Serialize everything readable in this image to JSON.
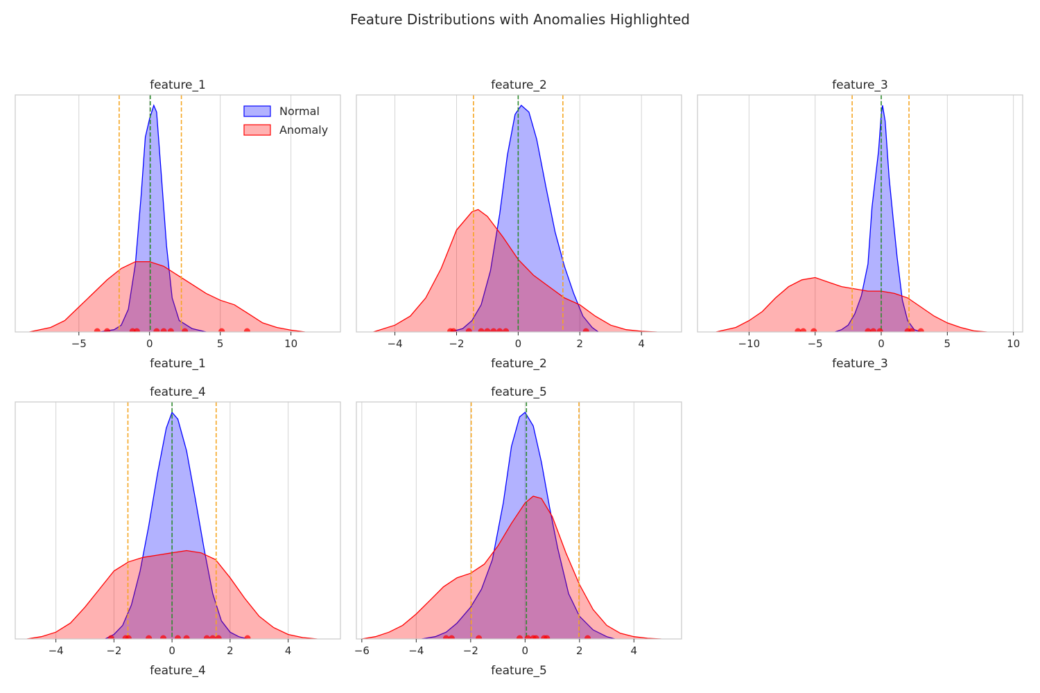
{
  "figure_title": "Feature Distributions with Anomalies Highlighted",
  "colors": {
    "normal_line": "#0000ff",
    "normal_fill": "#b0b0ff",
    "anomaly_line": "#ff0000",
    "anomaly_fill": "#ffb0b0",
    "mean_line": "#2e8b2e",
    "threshold_line": "#f5a623",
    "grid": "#d3d3d3",
    "frame": "#c8c8c8"
  },
  "legend": {
    "position": "upper right",
    "items": [
      {
        "label": "Normal",
        "series": "Normal"
      },
      {
        "label": "Anomaly",
        "series": "Anomaly"
      }
    ]
  },
  "chart_data": [
    {
      "type": "area",
      "title": "feature_1",
      "xlabel": "feature_1",
      "ylabel": "",
      "xlim": [
        -9.5,
        13.5
      ],
      "ylim": [
        0,
        1
      ],
      "xticks": [
        -5,
        0,
        5,
        10
      ],
      "xticklabels": [
        "−5",
        "0",
        "5",
        "10"
      ],
      "grid": "x",
      "legend": true,
      "mean": 0.05,
      "thresholds": [
        -2.15,
        2.25
      ],
      "series": [
        {
          "name": "Normal",
          "values": [
            [
              -3.5,
              0
            ],
            [
              -2.5,
              0.01
            ],
            [
              -2,
              0.03
            ],
            [
              -1.5,
              0.1
            ],
            [
              -1,
              0.3
            ],
            [
              -0.6,
              0.6
            ],
            [
              -0.3,
              0.86
            ],
            [
              0,
              0.94
            ],
            [
              0.3,
              1.0
            ],
            [
              0.5,
              0.97
            ],
            [
              0.8,
              0.72
            ],
            [
              1.2,
              0.38
            ],
            [
              1.6,
              0.15
            ],
            [
              2.1,
              0.05
            ],
            [
              3,
              0.015
            ],
            [
              4,
              0
            ]
          ]
        },
        {
          "name": "Anomaly",
          "values": [
            [
              -8.5,
              0
            ],
            [
              -7,
              0.02
            ],
            [
              -6,
              0.05
            ],
            [
              -5,
              0.11
            ],
            [
              -4,
              0.17
            ],
            [
              -3,
              0.23
            ],
            [
              -2,
              0.28
            ],
            [
              -1,
              0.31
            ],
            [
              0,
              0.31
            ],
            [
              1,
              0.29
            ],
            [
              2,
              0.25
            ],
            [
              3,
              0.21
            ],
            [
              4,
              0.17
            ],
            [
              5,
              0.14
            ],
            [
              6,
              0.12
            ],
            [
              7,
              0.08
            ],
            [
              8,
              0.04
            ],
            [
              9,
              0.02
            ],
            [
              10,
              0.008
            ],
            [
              11,
              0
            ]
          ]
        }
      ],
      "anomaly_points": [
        -3.7,
        -3.0,
        -1.2,
        -0.9,
        0.5,
        1.0,
        1.5,
        2.5,
        5.1,
        6.9
      ]
    },
    {
      "type": "area",
      "title": "feature_2",
      "xlabel": "feature_2",
      "ylabel": "",
      "xlim": [
        -5.25,
        5.3
      ],
      "ylim": [
        0,
        1
      ],
      "xticks": [
        -4,
        -2,
        0,
        2,
        4
      ],
      "xticklabels": [
        "−4",
        "−2",
        "0",
        "2",
        "4"
      ],
      "grid": "x",
      "legend": false,
      "mean": 0.0,
      "thresholds": [
        -1.45,
        1.45
      ],
      "series": [
        {
          "name": "Normal",
          "values": [
            [
              -2.2,
              0
            ],
            [
              -1.8,
              0.015
            ],
            [
              -1.5,
              0.05
            ],
            [
              -1.2,
              0.12
            ],
            [
              -0.9,
              0.27
            ],
            [
              -0.6,
              0.52
            ],
            [
              -0.35,
              0.78
            ],
            [
              -0.1,
              0.96
            ],
            [
              0.1,
              1.0
            ],
            [
              0.35,
              0.97
            ],
            [
              0.6,
              0.85
            ],
            [
              0.9,
              0.64
            ],
            [
              1.2,
              0.44
            ],
            [
              1.5,
              0.29
            ],
            [
              1.8,
              0.17
            ],
            [
              2.1,
              0.07
            ],
            [
              2.4,
              0.02
            ],
            [
              2.6,
              0
            ]
          ]
        },
        {
          "name": "Anomaly",
          "values": [
            [
              -4.7,
              0
            ],
            [
              -4,
              0.03
            ],
            [
              -3.5,
              0.07
            ],
            [
              -3,
              0.15
            ],
            [
              -2.5,
              0.28
            ],
            [
              -2,
              0.45
            ],
            [
              -1.5,
              0.53
            ],
            [
              -1.3,
              0.54
            ],
            [
              -1,
              0.51
            ],
            [
              -0.5,
              0.42
            ],
            [
              0,
              0.32
            ],
            [
              0.5,
              0.25
            ],
            [
              1,
              0.2
            ],
            [
              1.5,
              0.15
            ],
            [
              2,
              0.12
            ],
            [
              2.5,
              0.07
            ],
            [
              3,
              0.03
            ],
            [
              3.5,
              0.01
            ],
            [
              4,
              0.003
            ],
            [
              4.5,
              0
            ]
          ]
        }
      ],
      "anomaly_points": [
        -2.2,
        -2.1,
        -1.6,
        -1.2,
        -1.0,
        -0.8,
        -0.6,
        -0.4,
        2.2
      ]
    },
    {
      "type": "area",
      "title": "feature_3",
      "xlabel": "feature_3",
      "ylabel": "",
      "xlim": [
        -13.9,
        10.7
      ],
      "ylim": [
        0,
        1
      ],
      "xticks": [
        -10,
        -5,
        0,
        5,
        10
      ],
      "xticklabels": [
        "−10",
        "−5",
        "0",
        "5",
        "10"
      ],
      "grid": "x",
      "legend": false,
      "mean": 0.0,
      "thresholds": [
        -2.2,
        2.1
      ],
      "series": [
        {
          "name": "Normal",
          "values": [
            [
              -3.5,
              0
            ],
            [
              -3,
              0.01
            ],
            [
              -2.5,
              0.03
            ],
            [
              -2,
              0.08
            ],
            [
              -1.5,
              0.16
            ],
            [
              -1,
              0.3
            ],
            [
              -0.7,
              0.55
            ],
            [
              -0.4,
              0.7
            ],
            [
              -0.2,
              0.8
            ],
            [
              0,
              0.96
            ],
            [
              0.1,
              1.0
            ],
            [
              0.3,
              0.93
            ],
            [
              0.6,
              0.68
            ],
            [
              0.9,
              0.5
            ],
            [
              1.2,
              0.33
            ],
            [
              1.6,
              0.14
            ],
            [
              2,
              0.05
            ],
            [
              2.5,
              0.01
            ],
            [
              3,
              0
            ]
          ]
        },
        {
          "name": "Anomaly",
          "values": [
            [
              -12.5,
              0
            ],
            [
              -11,
              0.02
            ],
            [
              -10,
              0.05
            ],
            [
              -9,
              0.09
            ],
            [
              -8,
              0.15
            ],
            [
              -7,
              0.2
            ],
            [
              -6,
              0.23
            ],
            [
              -5,
              0.24
            ],
            [
              -4,
              0.22
            ],
            [
              -3,
              0.2
            ],
            [
              -2,
              0.19
            ],
            [
              -1,
              0.18
            ],
            [
              0,
              0.18
            ],
            [
              1,
              0.17
            ],
            [
              2,
              0.15
            ],
            [
              3,
              0.11
            ],
            [
              4,
              0.07
            ],
            [
              5,
              0.04
            ],
            [
              6,
              0.02
            ],
            [
              7,
              0.005
            ],
            [
              8,
              0
            ]
          ]
        }
      ],
      "anomaly_points": [
        -6.3,
        -5.9,
        -5.1,
        -1.0,
        -0.6,
        -0.1,
        2.0,
        2.3,
        3.0
      ]
    },
    {
      "type": "area",
      "title": "feature_4",
      "xlabel": "feature_4",
      "ylabel": "",
      "xlim": [
        -5.4,
        5.8
      ],
      "ylim": [
        0,
        1
      ],
      "xticks": [
        -4,
        -2,
        0,
        2,
        4
      ],
      "xticklabels": [
        "−4",
        "−2",
        "0",
        "2",
        "4"
      ],
      "grid": "x",
      "legend": false,
      "mean": 0.0,
      "thresholds": [
        -1.52,
        1.52
      ],
      "series": [
        {
          "name": "Normal",
          "values": [
            [
              -2.3,
              0
            ],
            [
              -2,
              0.02
            ],
            [
              -1.7,
              0.06
            ],
            [
              -1.4,
              0.15
            ],
            [
              -1.1,
              0.3
            ],
            [
              -0.8,
              0.5
            ],
            [
              -0.5,
              0.73
            ],
            [
              -0.2,
              0.93
            ],
            [
              0,
              1.0
            ],
            [
              0.2,
              0.97
            ],
            [
              0.5,
              0.83
            ],
            [
              0.8,
              0.62
            ],
            [
              1.1,
              0.4
            ],
            [
              1.4,
              0.2
            ],
            [
              1.7,
              0.08
            ],
            [
              2,
              0.03
            ],
            [
              2.3,
              0.01
            ],
            [
              2.6,
              0
            ]
          ]
        },
        {
          "name": "Anomaly",
          "values": [
            [
              -5,
              0
            ],
            [
              -4.5,
              0.01
            ],
            [
              -4,
              0.03
            ],
            [
              -3.5,
              0.07
            ],
            [
              -3,
              0.14
            ],
            [
              -2.5,
              0.22
            ],
            [
              -2,
              0.3
            ],
            [
              -1.5,
              0.34
            ],
            [
              -1,
              0.36
            ],
            [
              -0.5,
              0.37
            ],
            [
              0,
              0.38
            ],
            [
              0.5,
              0.39
            ],
            [
              1,
              0.38
            ],
            [
              1.5,
              0.35
            ],
            [
              2,
              0.27
            ],
            [
              2.5,
              0.18
            ],
            [
              3,
              0.1
            ],
            [
              3.5,
              0.05
            ],
            [
              4,
              0.02
            ],
            [
              4.5,
              0.006
            ],
            [
              5,
              0
            ]
          ]
        }
      ],
      "anomaly_points": [
        -2.1,
        -1.6,
        -1.5,
        -0.8,
        -0.3,
        0.2,
        0.5,
        1.2,
        1.4,
        1.6,
        2.6
      ]
    },
    {
      "type": "area",
      "title": "feature_5",
      "xlabel": "feature_5",
      "ylabel": "",
      "xlim": [
        -6.2,
        5.75
      ],
      "ylim": [
        0,
        1
      ],
      "xticks": [
        -6,
        -4,
        -2,
        0,
        2,
        4
      ],
      "xticklabels": [
        "−6",
        "−4",
        "−2",
        "0",
        "2",
        "4"
      ],
      "grid": "x",
      "legend": false,
      "mean": 0.05,
      "thresholds": [
        -1.98,
        1.98
      ],
      "series": [
        {
          "name": "Normal",
          "values": [
            [
              -3.8,
              0
            ],
            [
              -3.3,
              0.01
            ],
            [
              -2.9,
              0.03
            ],
            [
              -2.5,
              0.07
            ],
            [
              -2,
              0.14
            ],
            [
              -1.6,
              0.22
            ],
            [
              -1.2,
              0.35
            ],
            [
              -0.8,
              0.6
            ],
            [
              -0.5,
              0.85
            ],
            [
              -0.2,
              0.98
            ],
            [
              0,
              1.0
            ],
            [
              0.3,
              0.94
            ],
            [
              0.6,
              0.78
            ],
            [
              0.9,
              0.58
            ],
            [
              1.2,
              0.4
            ],
            [
              1.6,
              0.2
            ],
            [
              2,
              0.1
            ],
            [
              2.5,
              0.04
            ],
            [
              3,
              0.01
            ],
            [
              3.3,
              0
            ]
          ]
        },
        {
          "name": "Anomaly",
          "values": [
            [
              -6,
              0
            ],
            [
              -5.5,
              0.01
            ],
            [
              -5,
              0.03
            ],
            [
              -4.5,
              0.06
            ],
            [
              -4,
              0.11
            ],
            [
              -3.5,
              0.17
            ],
            [
              -3,
              0.23
            ],
            [
              -2.5,
              0.27
            ],
            [
              -2,
              0.29
            ],
            [
              -1.5,
              0.33
            ],
            [
              -1,
              0.41
            ],
            [
              -0.5,
              0.51
            ],
            [
              0,
              0.6
            ],
            [
              0.3,
              0.63
            ],
            [
              0.6,
              0.62
            ],
            [
              1,
              0.54
            ],
            [
              1.5,
              0.38
            ],
            [
              2,
              0.24
            ],
            [
              2.5,
              0.13
            ],
            [
              3,
              0.06
            ],
            [
              3.5,
              0.025
            ],
            [
              4,
              0.01
            ],
            [
              4.5,
              0.003
            ],
            [
              5,
              0
            ]
          ]
        }
      ],
      "anomaly_points": [
        -2.9,
        -2.7,
        -1.7,
        -0.2,
        0.1,
        0.3,
        0.4,
        0.7,
        0.8,
        2.3
      ]
    }
  ]
}
